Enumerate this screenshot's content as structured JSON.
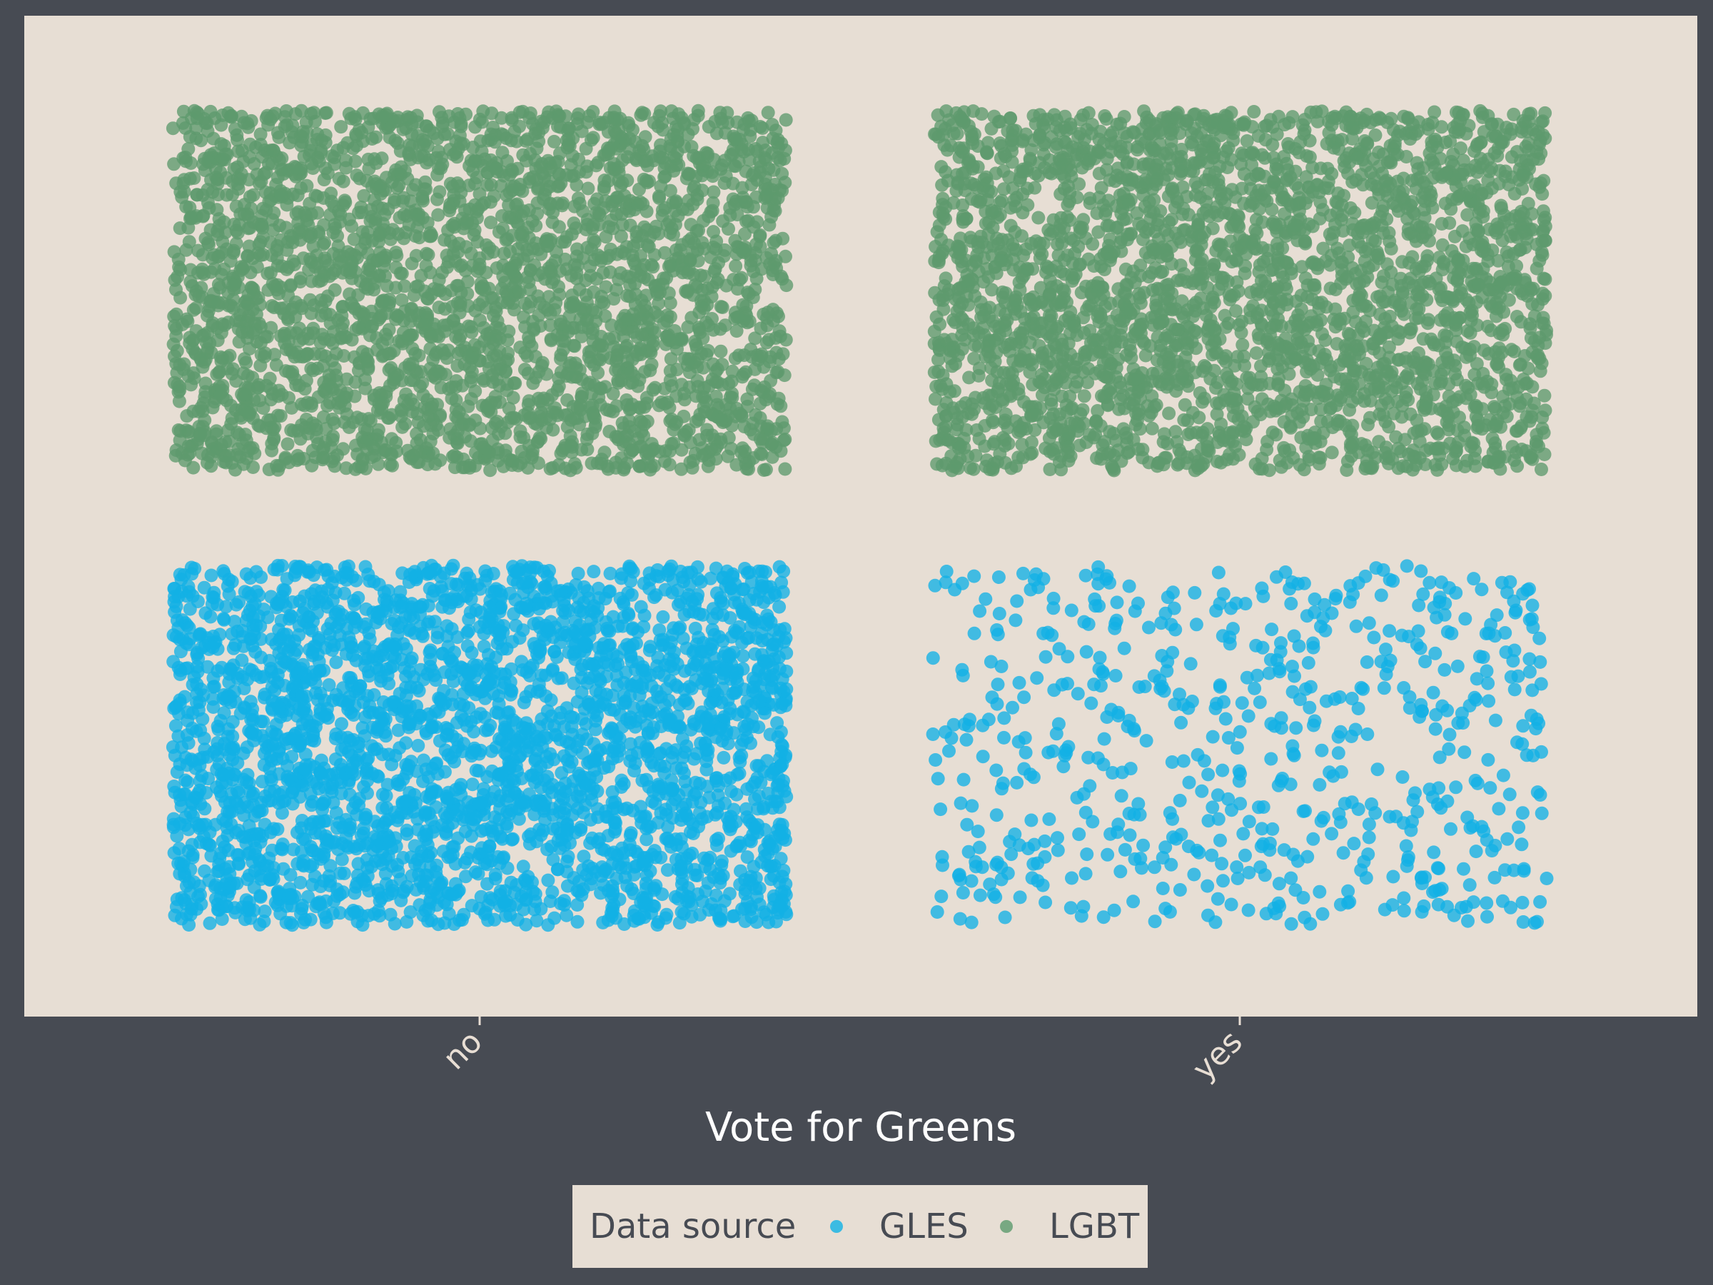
{
  "chart_data": {
    "type": "scatter",
    "jitter": true,
    "title": "",
    "xlabel": "Vote for Greens",
    "ylabel": "",
    "x_categories": [
      "no",
      "yes"
    ],
    "y_categories": [
      "GLES",
      "LGBT"
    ],
    "grid": false,
    "legend": {
      "title": "Data source",
      "position": "bottom",
      "entries": [
        {
          "name": "GLES",
          "color": "#12b1e5"
        },
        {
          "name": "LGBT",
          "color": "#5d9a6d"
        }
      ]
    },
    "series": [
      {
        "name": "GLES",
        "color": "#12b1e5",
        "counts": {
          "no": 3000,
          "yes": 650
        }
      },
      {
        "name": "LGBT",
        "color": "#5d9a6d",
        "counts": {
          "no": 3000,
          "yes": 3000
        }
      }
    ]
  },
  "colors": {
    "page_background": "#474b53",
    "panel_background": "#e7ded4",
    "tick_text": "#e8ded4",
    "axis_title": "#ffffff",
    "legend_background": "#e7ded4",
    "legend_text": "#474b53"
  }
}
